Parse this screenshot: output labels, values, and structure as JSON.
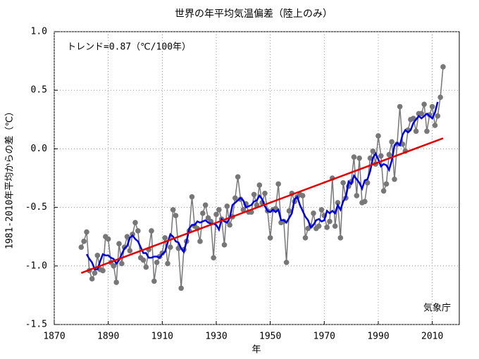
{
  "chart_data": {
    "type": "line",
    "title": "世界の年平均気温偏差（陸上のみ）",
    "y_label": "1981-2010年平均からの差（℃）",
    "x_label": "年",
    "annotations": [
      "トレンド=0.87（℃/100年）",
      "気象庁"
    ],
    "xlim": [
      1870,
      2020
    ],
    "xticks": [
      1870,
      1890,
      1910,
      1930,
      1950,
      1970,
      1990,
      2010
    ],
    "ylim": [
      -1.5,
      1.0
    ],
    "yticks": [
      {
        "value": -1.5,
        "label": "-1.5"
      },
      {
        "value": -1,
        "label": "-1.0"
      },
      {
        "value": -0.5,
        "label": "-0.5"
      },
      {
        "value": 0,
        "label": "0.0"
      },
      {
        "value": 0.5,
        "label": "0.5"
      },
      {
        "value": 1,
        "label": "1.0"
      }
    ],
    "grid": true,
    "x": [
      1880,
      1881,
      1882,
      1883,
      1884,
      1885,
      1886,
      1887,
      1888,
      1889,
      1890,
      1891,
      1892,
      1893,
      1894,
      1895,
      1896,
      1897,
      1898,
      1899,
      1900,
      1901,
      1902,
      1903,
      1904,
      1905,
      1906,
      1907,
      1908,
      1909,
      1910,
      1911,
      1912,
      1913,
      1914,
      1915,
      1916,
      1917,
      1918,
      1919,
      1920,
      1921,
      1922,
      1923,
      1924,
      1925,
      1926,
      1927,
      1928,
      1929,
      1930,
      1931,
      1932,
      1933,
      1934,
      1935,
      1936,
      1937,
      1938,
      1939,
      1940,
      1941,
      1942,
      1943,
      1944,
      1945,
      1946,
      1947,
      1948,
      1949,
      1950,
      1951,
      1952,
      1953,
      1954,
      1955,
      1956,
      1957,
      1958,
      1959,
      1960,
      1961,
      1962,
      1963,
      1964,
      1965,
      1966,
      1967,
      1968,
      1969,
      1970,
      1971,
      1972,
      1973,
      1974,
      1975,
      1976,
      1977,
      1978,
      1979,
      1980,
      1981,
      1982,
      1983,
      1984,
      1985,
      1986,
      1987,
      1988,
      1989,
      1990,
      1991,
      1992,
      1993,
      1994,
      1995,
      1996,
      1997,
      1998,
      1999,
      2000,
      2001,
      2002,
      2003,
      2004,
      2005,
      2006,
      2007,
      2008,
      2009,
      2010,
      2011,
      2012,
      2013,
      2014
    ],
    "series": [
      {
        "color": "#777777",
        "markers": true,
        "values": [
          -0.84,
          -0.79,
          -0.71,
          -1.04,
          -1.11,
          -1.06,
          -0.91,
          -1.03,
          -1.04,
          -0.75,
          -0.77,
          -0.97,
          -1.0,
          -1.14,
          -0.81,
          -0.98,
          -0.84,
          -0.75,
          -0.87,
          -0.73,
          -0.63,
          -0.7,
          -0.93,
          -0.95,
          -1.01,
          -0.86,
          -0.7,
          -1.13,
          -0.97,
          -0.92,
          -0.89,
          -0.76,
          -0.98,
          -0.84,
          -0.52,
          -0.57,
          -0.85,
          -1.19,
          -0.86,
          -0.79,
          -0.7,
          -0.41,
          -0.66,
          -0.68,
          -0.79,
          -0.55,
          -0.48,
          -0.59,
          -0.62,
          -0.93,
          -0.56,
          -0.52,
          -0.6,
          -0.82,
          -0.49,
          -0.65,
          -0.58,
          -0.42,
          -0.24,
          -0.43,
          -0.52,
          -0.47,
          -0.54,
          -0.54,
          -0.39,
          -0.48,
          -0.31,
          -0.46,
          -0.38,
          -0.53,
          -0.76,
          -0.52,
          -0.51,
          -0.3,
          -0.63,
          -0.62,
          -0.97,
          -0.53,
          -0.38,
          -0.45,
          -0.41,
          -0.39,
          -0.4,
          -0.76,
          -0.68,
          -0.66,
          -0.55,
          -0.68,
          -0.66,
          -0.52,
          -0.57,
          -0.67,
          -0.62,
          -0.25,
          -0.66,
          -0.46,
          -0.76,
          -0.29,
          -0.42,
          -0.32,
          -0.28,
          -0.07,
          -0.4,
          -0.08,
          -0.46,
          -0.45,
          -0.29,
          -0.08,
          -0.02,
          -0.13,
          0.11,
          -0.06,
          -0.36,
          -0.3,
          -0.05,
          0.06,
          -0.26,
          0.04,
          0.36,
          0.04,
          -0.02,
          0.16,
          0.25,
          0.26,
          0.15,
          0.3,
          0.3,
          0.38,
          0.15,
          0.29,
          0.36,
          0.2,
          0.28,
          0.44,
          0.7
        ]
      },
      {
        "color": "#0000dd",
        "markers": false,
        "values": [
          null,
          null,
          -0.9,
          -0.94,
          -0.97,
          -1.03,
          -1.03,
          -0.96,
          -0.9,
          -0.91,
          -0.91,
          -0.93,
          -0.94,
          -0.98,
          -0.95,
          -0.9,
          -0.85,
          -0.83,
          -0.76,
          -0.74,
          -0.77,
          -0.79,
          -0.84,
          -0.89,
          -0.89,
          -0.93,
          -0.93,
          -0.92,
          -0.92,
          -0.93,
          -0.9,
          -0.88,
          -0.8,
          -0.73,
          -0.75,
          -0.79,
          -0.8,
          -0.85,
          -0.88,
          -0.79,
          -0.68,
          -0.65,
          -0.65,
          -0.62,
          -0.63,
          -0.62,
          -0.61,
          -0.63,
          -0.64,
          -0.64,
          -0.65,
          -0.69,
          -0.6,
          -0.62,
          -0.63,
          -0.59,
          -0.48,
          -0.46,
          -0.44,
          -0.42,
          -0.44,
          -0.5,
          -0.49,
          -0.48,
          -0.45,
          -0.44,
          -0.4,
          -0.43,
          -0.49,
          -0.53,
          -0.54,
          -0.52,
          -0.54,
          -0.52,
          -0.61,
          -0.61,
          -0.63,
          -0.59,
          -0.55,
          -0.43,
          -0.41,
          -0.48,
          -0.53,
          -0.58,
          -0.61,
          -0.67,
          -0.65,
          -0.61,
          -0.6,
          -0.62,
          -0.61,
          -0.53,
          -0.55,
          -0.53,
          -0.55,
          -0.48,
          -0.52,
          -0.45,
          -0.41,
          -0.28,
          -0.3,
          -0.23,
          -0.26,
          -0.29,
          -0.34,
          -0.27,
          -0.26,
          -0.19,
          -0.08,
          -0.04,
          -0.09,
          -0.15,
          -0.13,
          -0.14,
          -0.18,
          -0.1,
          0.03,
          0.05,
          0.03,
          0.12,
          0.16,
          0.14,
          0.16,
          0.22,
          0.25,
          0.28,
          0.26,
          0.28,
          0.3,
          0.28,
          0.26,
          0.31,
          0.4,
          null,
          null
        ]
      }
    ],
    "trend": {
      "x": [
        1880,
        2014
      ],
      "values": [
        -1.06,
        0.09
      ],
      "color": "#e00000"
    }
  }
}
